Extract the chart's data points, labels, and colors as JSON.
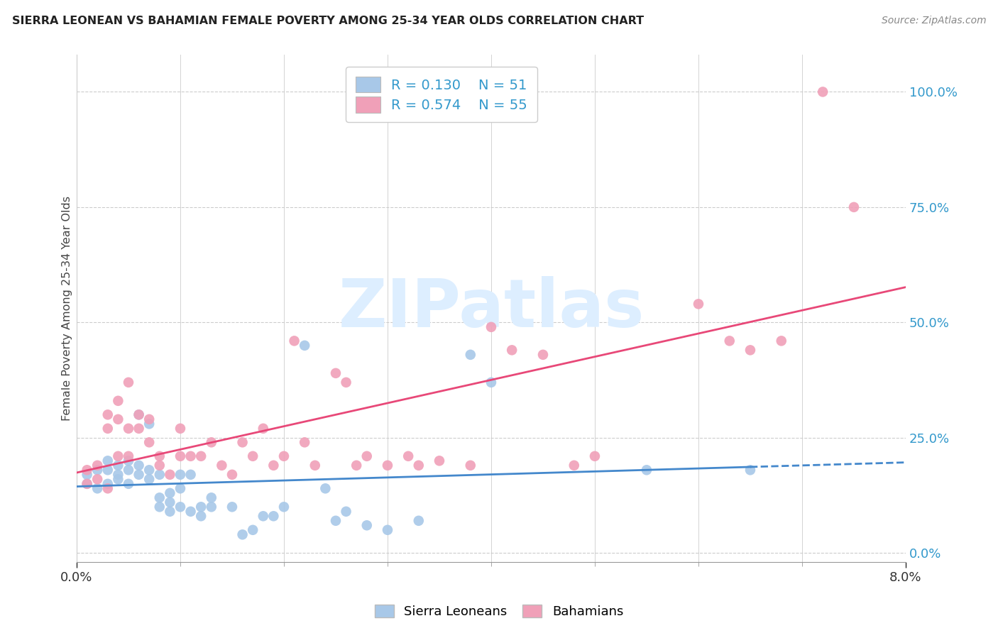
{
  "title": "SIERRA LEONEAN VS BAHAMIAN FEMALE POVERTY AMONG 25-34 YEAR OLDS CORRELATION CHART",
  "source": "Source: ZipAtlas.com",
  "ylabel": "Female Poverty Among 25-34 Year Olds",
  "xlim": [
    0.0,
    0.08
  ],
  "ylim": [
    -0.02,
    1.08
  ],
  "yticks": [
    0.0,
    0.25,
    0.5,
    0.75,
    1.0
  ],
  "ytick_labels": [
    "0.0%",
    "25.0%",
    "50.0%",
    "75.0%",
    "100.0%"
  ],
  "xtick_labels": [
    "0.0%",
    "8.0%"
  ],
  "legend_r_blue": "R = 0.130",
  "legend_n_blue": "N = 51",
  "legend_r_pink": "R = 0.574",
  "legend_n_pink": "N = 55",
  "blue_color": "#a8c8e8",
  "pink_color": "#f0a0b8",
  "blue_line_color": "#4488cc",
  "pink_line_color": "#e84878",
  "label_color": "#3399cc",
  "blue_scatter": [
    [
      0.001,
      0.17
    ],
    [
      0.001,
      0.15
    ],
    [
      0.002,
      0.18
    ],
    [
      0.002,
      0.14
    ],
    [
      0.003,
      0.18
    ],
    [
      0.003,
      0.2
    ],
    [
      0.003,
      0.15
    ],
    [
      0.004,
      0.19
    ],
    [
      0.004,
      0.17
    ],
    [
      0.004,
      0.16
    ],
    [
      0.005,
      0.2
    ],
    [
      0.005,
      0.18
    ],
    [
      0.005,
      0.15
    ],
    [
      0.006,
      0.19
    ],
    [
      0.006,
      0.17
    ],
    [
      0.006,
      0.3
    ],
    [
      0.007,
      0.28
    ],
    [
      0.007,
      0.16
    ],
    [
      0.007,
      0.18
    ],
    [
      0.008,
      0.17
    ],
    [
      0.008,
      0.12
    ],
    [
      0.008,
      0.1
    ],
    [
      0.009,
      0.09
    ],
    [
      0.009,
      0.13
    ],
    [
      0.009,
      0.11
    ],
    [
      0.01,
      0.17
    ],
    [
      0.01,
      0.14
    ],
    [
      0.01,
      0.1
    ],
    [
      0.011,
      0.17
    ],
    [
      0.011,
      0.09
    ],
    [
      0.012,
      0.1
    ],
    [
      0.012,
      0.08
    ],
    [
      0.013,
      0.12
    ],
    [
      0.013,
      0.1
    ],
    [
      0.015,
      0.1
    ],
    [
      0.016,
      0.04
    ],
    [
      0.017,
      0.05
    ],
    [
      0.018,
      0.08
    ],
    [
      0.019,
      0.08
    ],
    [
      0.02,
      0.1
    ],
    [
      0.022,
      0.45
    ],
    [
      0.024,
      0.14
    ],
    [
      0.025,
      0.07
    ],
    [
      0.026,
      0.09
    ],
    [
      0.028,
      0.06
    ],
    [
      0.03,
      0.05
    ],
    [
      0.033,
      0.07
    ],
    [
      0.038,
      0.43
    ],
    [
      0.04,
      0.37
    ],
    [
      0.055,
      0.18
    ],
    [
      0.065,
      0.18
    ]
  ],
  "pink_scatter": [
    [
      0.001,
      0.15
    ],
    [
      0.001,
      0.18
    ],
    [
      0.002,
      0.16
    ],
    [
      0.002,
      0.19
    ],
    [
      0.003,
      0.14
    ],
    [
      0.003,
      0.3
    ],
    [
      0.003,
      0.27
    ],
    [
      0.004,
      0.29
    ],
    [
      0.004,
      0.33
    ],
    [
      0.004,
      0.21
    ],
    [
      0.005,
      0.27
    ],
    [
      0.005,
      0.21
    ],
    [
      0.005,
      0.37
    ],
    [
      0.006,
      0.3
    ],
    [
      0.006,
      0.27
    ],
    [
      0.007,
      0.24
    ],
    [
      0.007,
      0.29
    ],
    [
      0.008,
      0.19
    ],
    [
      0.008,
      0.21
    ],
    [
      0.009,
      0.17
    ],
    [
      0.01,
      0.21
    ],
    [
      0.01,
      0.27
    ],
    [
      0.011,
      0.21
    ],
    [
      0.012,
      0.21
    ],
    [
      0.013,
      0.24
    ],
    [
      0.014,
      0.19
    ],
    [
      0.015,
      0.17
    ],
    [
      0.016,
      0.24
    ],
    [
      0.017,
      0.21
    ],
    [
      0.018,
      0.27
    ],
    [
      0.019,
      0.19
    ],
    [
      0.02,
      0.21
    ],
    [
      0.021,
      0.46
    ],
    [
      0.022,
      0.24
    ],
    [
      0.023,
      0.19
    ],
    [
      0.025,
      0.39
    ],
    [
      0.026,
      0.37
    ],
    [
      0.027,
      0.19
    ],
    [
      0.028,
      0.21
    ],
    [
      0.03,
      0.19
    ],
    [
      0.032,
      0.21
    ],
    [
      0.033,
      0.19
    ],
    [
      0.035,
      0.2
    ],
    [
      0.038,
      0.19
    ],
    [
      0.04,
      0.49
    ],
    [
      0.042,
      0.44
    ],
    [
      0.045,
      0.43
    ],
    [
      0.048,
      0.19
    ],
    [
      0.05,
      0.21
    ],
    [
      0.06,
      0.54
    ],
    [
      0.063,
      0.46
    ],
    [
      0.065,
      0.44
    ],
    [
      0.068,
      0.46
    ],
    [
      0.072,
      1.0
    ],
    [
      0.075,
      0.75
    ]
  ],
  "background_color": "#ffffff",
  "grid_color": "#cccccc",
  "watermark_text": "ZIPatlas",
  "watermark_color": "#ddeeff"
}
